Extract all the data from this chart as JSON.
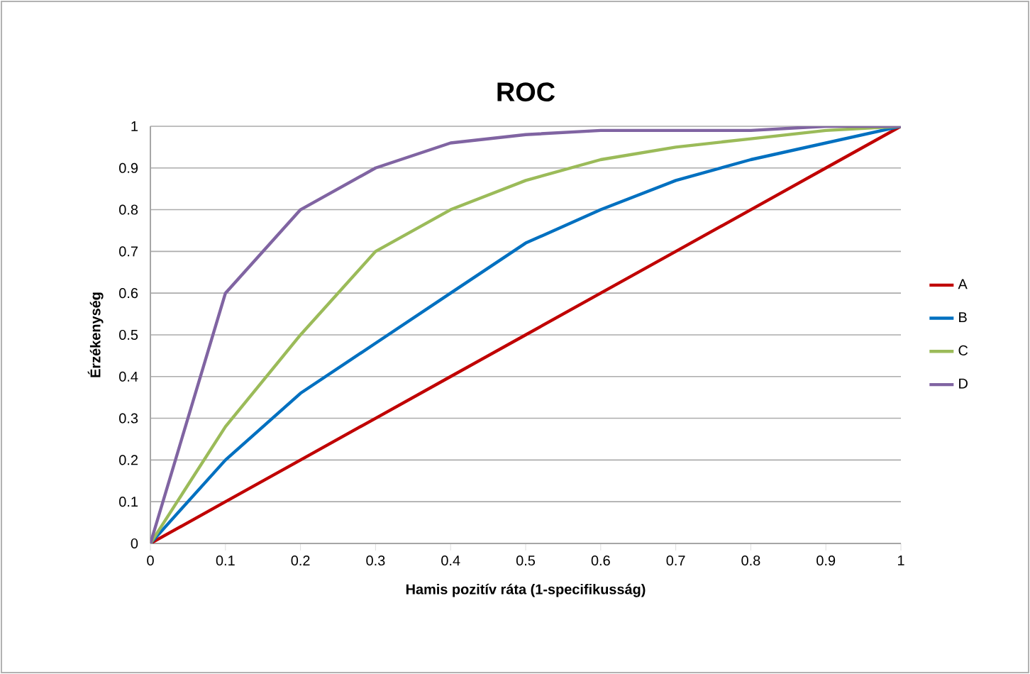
{
  "chart_data": {
    "type": "line",
    "title": "ROC",
    "xlabel": "Hamis pozitív ráta (1-specifikusság)",
    "ylabel": "Érzékenység",
    "x": [
      0,
      0.1,
      0.2,
      0.3,
      0.4,
      0.5,
      0.6,
      0.7,
      0.8,
      0.9,
      1
    ],
    "series": [
      {
        "name": "A",
        "color": "#c00000",
        "values": [
          0,
          0.1,
          0.2,
          0.3,
          0.4,
          0.5,
          0.6,
          0.7,
          0.8,
          0.9,
          1
        ]
      },
      {
        "name": "B",
        "color": "#0070c0",
        "values": [
          0,
          0.2,
          0.36,
          0.48,
          0.6,
          0.72,
          0.8,
          0.87,
          0.92,
          0.96,
          1
        ]
      },
      {
        "name": "C",
        "color": "#9bbb59",
        "values": [
          0,
          0.28,
          0.5,
          0.7,
          0.8,
          0.87,
          0.92,
          0.95,
          0.97,
          0.99,
          1
        ]
      },
      {
        "name": "D",
        "color": "#8064a2",
        "values": [
          0,
          0.6,
          0.8,
          0.9,
          0.96,
          0.98,
          0.99,
          0.99,
          0.99,
          1,
          1
        ]
      }
    ],
    "xlim": [
      0,
      1
    ],
    "ylim": [
      0,
      1
    ],
    "xticks": [
      0,
      0.1,
      0.2,
      0.3,
      0.4,
      0.5,
      0.6,
      0.7,
      0.8,
      0.9,
      1
    ],
    "yticks": [
      0,
      0.1,
      0.2,
      0.3,
      0.4,
      0.5,
      0.6,
      0.7,
      0.8,
      0.9,
      1
    ],
    "grid": "y",
    "legend": "right",
    "marker": "none",
    "line_style": "solid"
  }
}
